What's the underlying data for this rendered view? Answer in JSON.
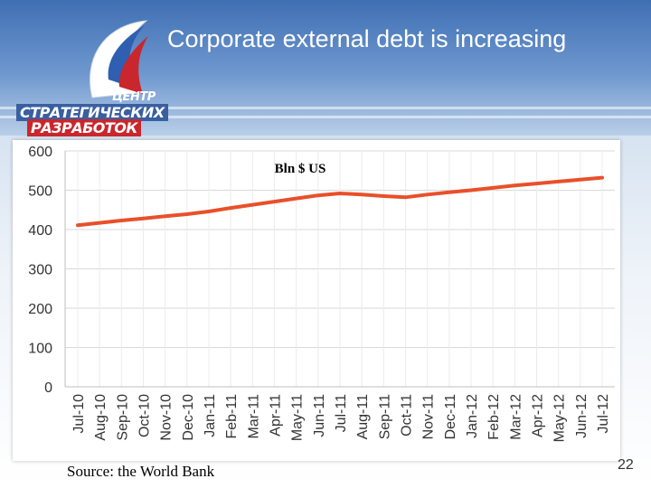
{
  "slide": {
    "title": "Corporate external debt is increasing",
    "source": "Source: the World Bank",
    "page_number": "22"
  },
  "logo": {
    "line1": "ЦЕНТР",
    "line2": "СТРАТЕГИЧЕСКИХ",
    "line3": "РАЗРАБОТОК"
  },
  "colors": {
    "line": "#e8502a",
    "grid": "#d9d9d9",
    "title_band": "#4f7fbf"
  },
  "chart_data": {
    "type": "line",
    "title": "Bln $ US",
    "xlabel": "",
    "ylabel": "",
    "ylim": [
      0,
      600
    ],
    "yticks": [
      0,
      100,
      200,
      300,
      400,
      500,
      600
    ],
    "grid": true,
    "legend": "none",
    "categories": [
      "Jul-10",
      "Aug-10",
      "Sep-10",
      "Oct-10",
      "Nov-10",
      "Dec-10",
      "Jan-11",
      "Feb-11",
      "Mar-11",
      "Apr-11",
      "May-11",
      "Jun-11",
      "Jul-11",
      "Aug-11",
      "Sep-11",
      "Oct-11",
      "Nov-11",
      "Dec-11",
      "Jan-12",
      "Feb-12",
      "Mar-12",
      "Apr-12",
      "May-12",
      "Jun-12",
      "Jul-12"
    ],
    "series": [
      {
        "values": [
          411,
          417,
          423,
          428,
          434,
          439,
          446,
          455,
          463,
          471,
          479,
          487,
          492,
          489,
          485,
          482,
          489,
          495,
          500,
          506,
          512,
          517,
          522,
          527,
          532
        ]
      }
    ]
  }
}
